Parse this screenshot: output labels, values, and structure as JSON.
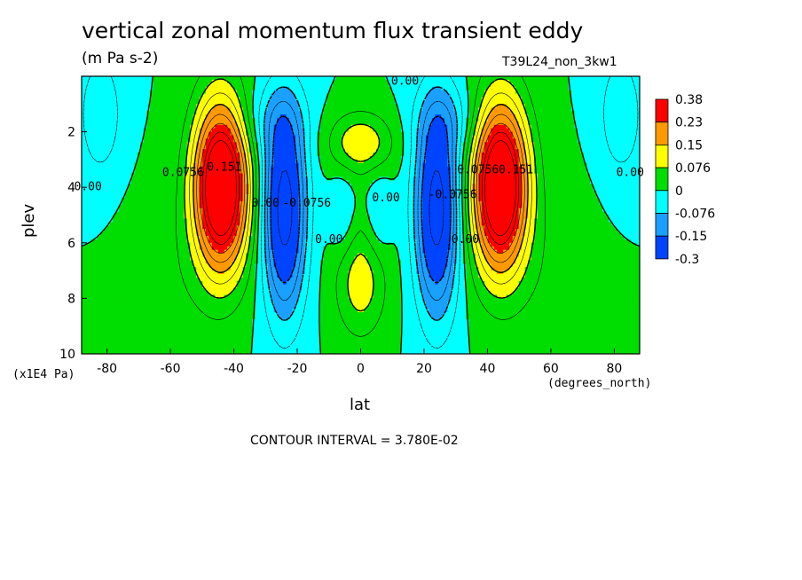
{
  "header": {
    "title": "vertical zonal momentum flux transient eddy",
    "subtitle": "(m Pa s-2)",
    "run_id": "T39L24_non_3kw1"
  },
  "footer": {
    "contour_interval": "CONTOUR INTERVAL = 3.780E-02"
  },
  "chart_data": {
    "type": "heatmap",
    "title": "vertical zonal momentum flux transient eddy",
    "subtitle": "(m Pa s-2)",
    "xlabel": "lat",
    "xunits": "(degrees_north)",
    "ylabel": "plev",
    "yunits": "(x1E4 Pa)",
    "xlim": [
      -88,
      88
    ],
    "ylim": [
      0,
      10
    ],
    "y_inverted": true,
    "xticks": [
      -80,
      -60,
      -40,
      -20,
      0,
      20,
      40,
      60,
      80
    ],
    "xtick_labels": [
      "-80",
      "-60",
      "-40",
      "-20",
      "0",
      "20",
      "40",
      "60",
      "80"
    ],
    "yticks": [
      2,
      4,
      6,
      8,
      10
    ],
    "ytick_labels": [
      "2",
      "4",
      "6",
      "8",
      "10"
    ],
    "colorbar": {
      "labels": [
        "0.38",
        "0.23",
        "0.15",
        "0.076",
        "0",
        "-0.076",
        "-0.15",
        "-0.3"
      ],
      "colors": [
        "#ff0000",
        "#ff9900",
        "#ffff00",
        "#00dd00",
        "#00ffff",
        "#1aa0ff",
        "#0044ff"
      ]
    },
    "contour_labels": [
      {
        "text": "0.00",
        "lat": 14,
        "p": 0.3
      },
      {
        "text": "0.0756",
        "lat": -56,
        "p": 3.6
      },
      {
        "text": "0.151",
        "lat": -43,
        "p": 3.4
      },
      {
        "text": "0.00",
        "lat": -86,
        "p": 4.1
      },
      {
        "text": "0.00",
        "lat": -30,
        "p": 4.7
      },
      {
        "text": "-0.0756",
        "lat": -17,
        "p": 4.7
      },
      {
        "text": "0.00",
        "lat": -10,
        "p": 6.0
      },
      {
        "text": "0.00",
        "lat": 8,
        "p": 4.5
      },
      {
        "text": "-0.0756",
        "lat": 29,
        "p": 4.4
      },
      {
        "text": "0.00",
        "lat": 33,
        "p": 6.0
      },
      {
        "text": "0.0756",
        "lat": 37,
        "p": 3.5
      },
      {
        "text": "0.151",
        "lat": 49,
        "p": 3.5
      },
      {
        "text": "0.00",
        "lat": 85,
        "p": 3.6
      }
    ],
    "grid": false
  }
}
